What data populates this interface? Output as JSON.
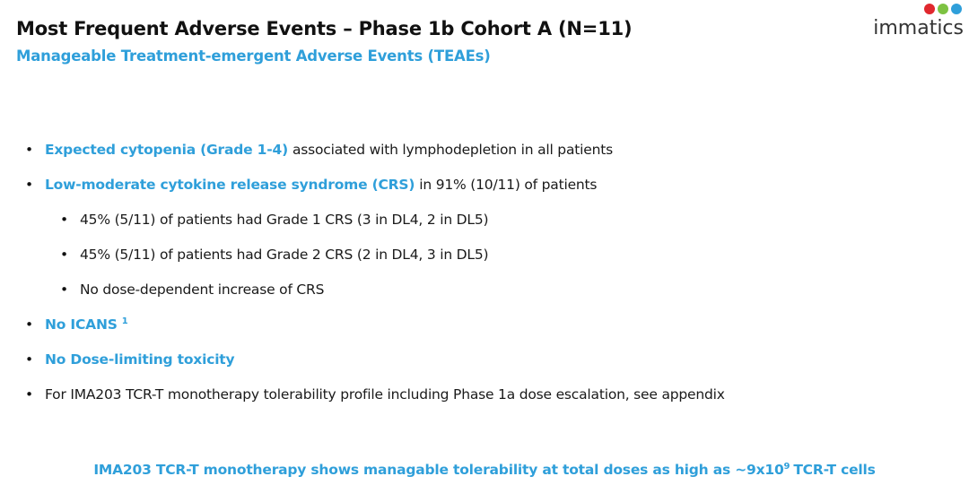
{
  "header": {
    "title": "Most Frequent Adverse Events – Phase 1b Cohort A (N=11)",
    "subtitle": "Manageable Treatment-emergent Adverse Events (TEAEs)",
    "logo": "immatics"
  },
  "bullets": [
    {
      "lead": "Expected cytopenia (Grade 1-4)",
      "text": "associated with lymphodepletion in all patients"
    },
    {
      "lead": "Low-moderate cytokine release syndrome (CRS)",
      "text": "in 91% (10/11) of patients",
      "children": [
        "45% (5/11) of patients had Grade 1 CRS (3 in DL4, 2 in DL5)",
        "45% (5/11) of patients had Grade 2 CRS (2 in DL4, 3 in DL5)",
        "No dose-dependent increase of CRS"
      ]
    },
    {
      "lead": "No ICANS",
      "sup": "1"
    },
    {
      "lead": "No Dose-limiting toxicity"
    },
    {
      "text": "For IMA203 TCR-T monotherapy tolerability profile including Phase 1a dose escalation, see appendix"
    }
  ],
  "footer": {
    "before": "IMA203 TCR-T monotherapy shows managable tolerability at total doses as high as ~9x10",
    "sup": "9",
    "after": "TCR-T cells"
  }
}
